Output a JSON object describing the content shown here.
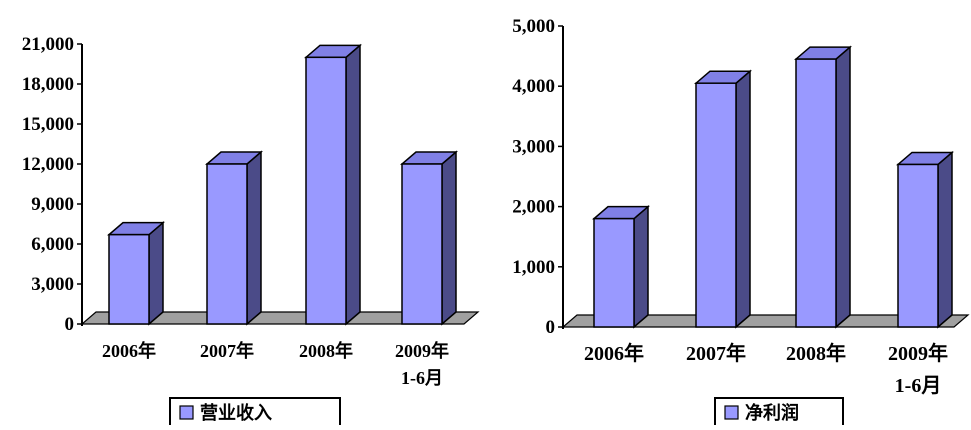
{
  "colors": {
    "bar_front": "#9999ff",
    "bar_side": "#4b4b88",
    "bar_top": "#8080e6",
    "bar_outline": "#000000",
    "floor": "#a0a0a0",
    "background": "#ffffff"
  },
  "chart_data": [
    {
      "type": "bar",
      "three_d": true,
      "title": "",
      "xlabel": "",
      "ylabel": "",
      "categories": [
        "2006年",
        "2007年",
        "2008年",
        "2009年 1-6月"
      ],
      "category_lines": [
        [
          "2006年"
        ],
        [
          "2007年"
        ],
        [
          "2008年"
        ],
        [
          "2009年",
          "1-6月"
        ]
      ],
      "series": [
        {
          "name": "营业收入",
          "values": [
            6700,
            12000,
            20000,
            12000
          ]
        }
      ],
      "ylim": [
        0,
        21000
      ],
      "yticks": [
        0,
        3000,
        6000,
        9000,
        12000,
        15000,
        18000,
        21000
      ],
      "ytick_labels": [
        "0",
        "3,000",
        "6,000",
        "9,000",
        "12,000",
        "15,000",
        "18,000",
        "21,000"
      ],
      "grid": false,
      "legend": {
        "position": "bottom",
        "label": "营业收入"
      }
    },
    {
      "type": "bar",
      "three_d": true,
      "title": "",
      "xlabel": "",
      "ylabel": "",
      "categories": [
        "2006年",
        "2007年",
        "2008年",
        "2009年 1-6月"
      ],
      "category_lines": [
        [
          "2006年"
        ],
        [
          "2007年"
        ],
        [
          "2008年"
        ],
        [
          "2009年",
          "1-6月"
        ]
      ],
      "series": [
        {
          "name": "净利润",
          "values": [
            1800,
            4050,
            4450,
            2700
          ]
        }
      ],
      "ylim": [
        0,
        5000
      ],
      "yticks": [
        0,
        1000,
        2000,
        3000,
        4000,
        5000
      ],
      "ytick_labels": [
        "0",
        "1,000",
        "2,000",
        "3,000",
        "4,000",
        "5,000"
      ],
      "grid": false,
      "legend": {
        "position": "bottom",
        "label": "净利润"
      }
    }
  ]
}
